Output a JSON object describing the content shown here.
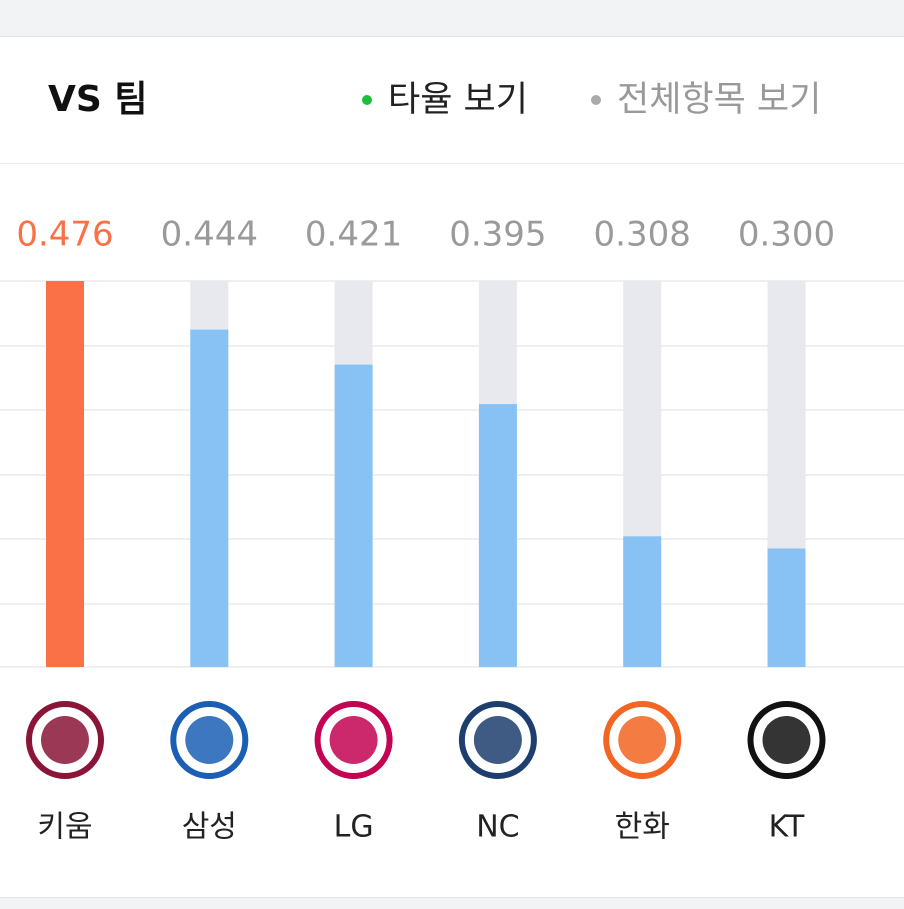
{
  "header": {
    "title": "VS 팀",
    "tabs": [
      "타율 보기",
      "전체항목 보기"
    ]
  },
  "chart_data": {
    "type": "bar",
    "categories": [
      "키움",
      "삼성",
      "LG",
      "NC",
      "한화",
      "KT"
    ],
    "values": [
      0.476,
      0.444,
      0.421,
      0.395,
      0.308,
      0.3
    ],
    "value_labels": [
      "0.476",
      "0.444",
      "0.421",
      "0.395",
      "0.308",
      "0.300"
    ],
    "colors": [
      "#fa7147",
      "#88c2f5",
      "#88c2f5",
      "#88c2f5",
      "#88c2f5",
      "#88c2f5"
    ],
    "ylim": [
      0.222,
      0.476
    ]
  }
}
